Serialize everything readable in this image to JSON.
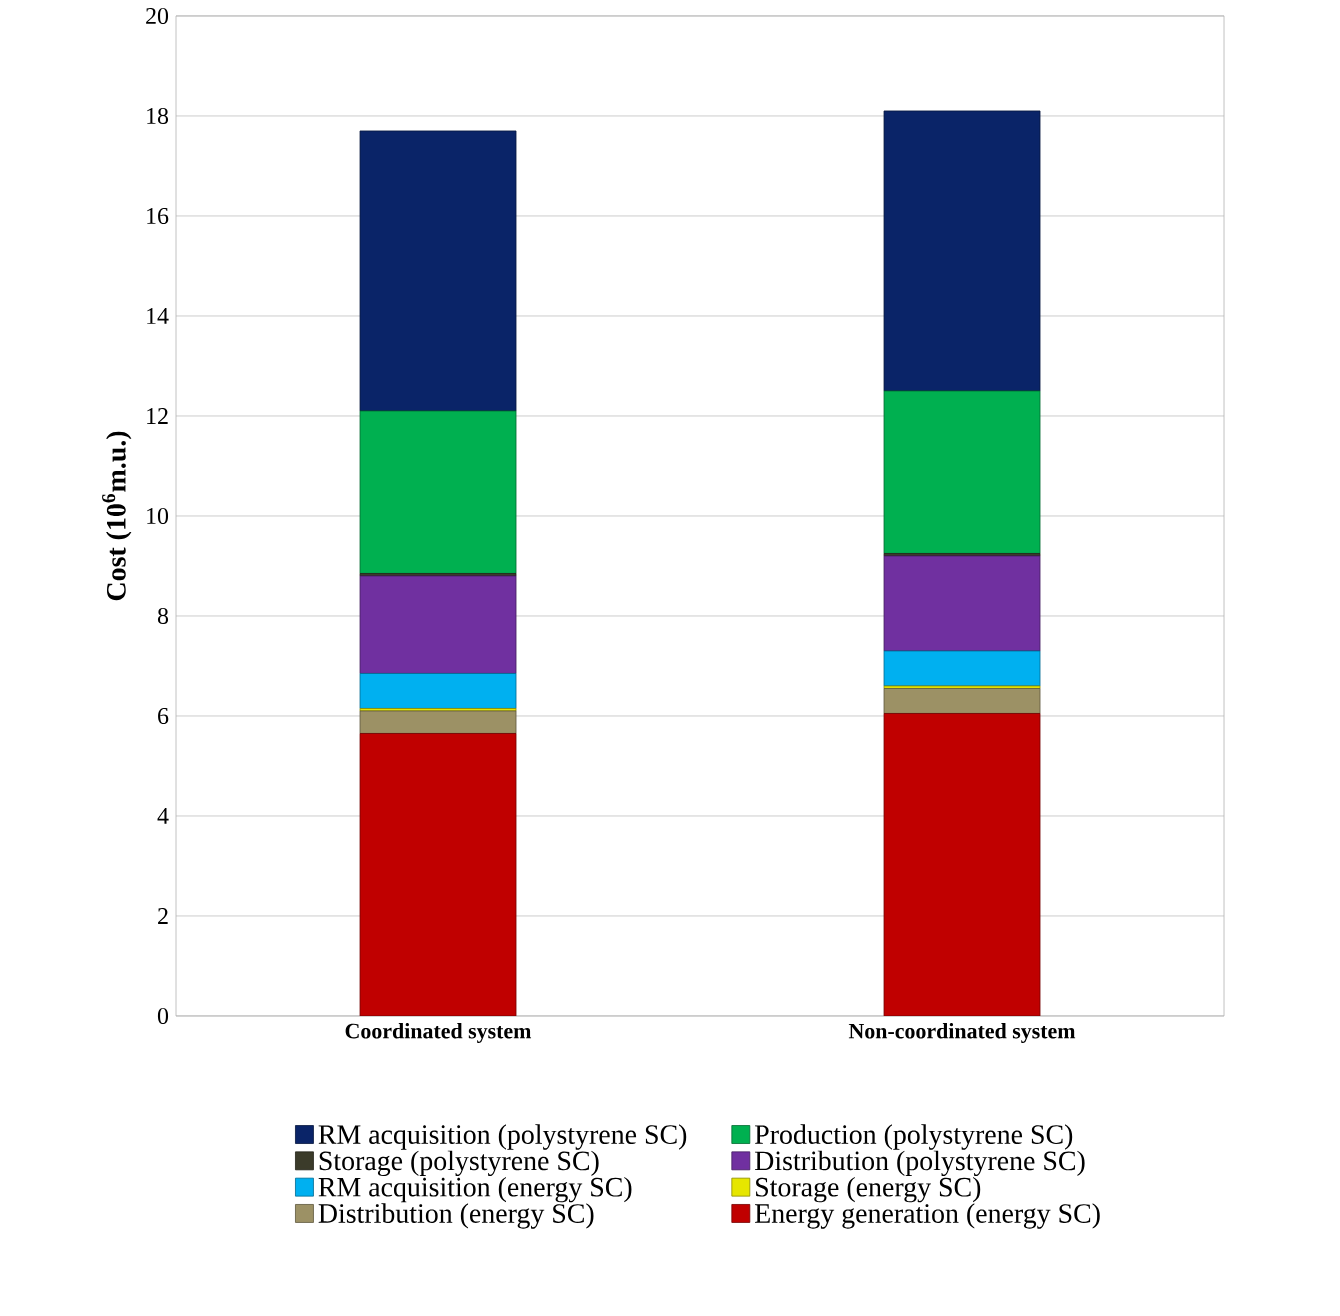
{
  "chart_data": {
    "type": "bar",
    "stacked": true,
    "ylabel": "Cost (10$^{6}$m.u.)",
    "categories": [
      "Coordinated system",
      "Non-coordinated system"
    ],
    "ylim": [
      0,
      20
    ],
    "yticks": [
      0,
      2,
      4,
      6,
      8,
      10,
      12,
      14,
      16,
      18,
      20
    ],
    "grid": "y",
    "legend": "bottom",
    "series": [
      {
        "name": "Energy generation  (energy SC)",
        "color": "#c00000",
        "values": [
          5.65,
          6.05
        ]
      },
      {
        "name": "Distribution (energy SC)",
        "color": "#9c9165",
        "values": [
          0.45,
          0.5
        ]
      },
      {
        "name": "Storage (energy SC)",
        "color": "#e6e600",
        "values": [
          0.05,
          0.05
        ]
      },
      {
        "name": "RM acquisition (energy SC)",
        "color": "#00b0f0",
        "values": [
          0.7,
          0.7
        ]
      },
      {
        "name": "Distribution (polystyrene SC)",
        "color": "#7030a0",
        "values": [
          1.95,
          1.9
        ]
      },
      {
        "name": "Storage (polystyrene SC)",
        "color": "#3b3b2a",
        "values": [
          0.05,
          0.05
        ]
      },
      {
        "name": "Production (polystyrene SC)",
        "color": "#00b050",
        "values": [
          3.25,
          3.25
        ]
      },
      {
        "name": "RM acquisition (polystyrene SC)",
        "color": "#0a2468",
        "values": [
          5.6,
          5.6
        ]
      }
    ]
  }
}
